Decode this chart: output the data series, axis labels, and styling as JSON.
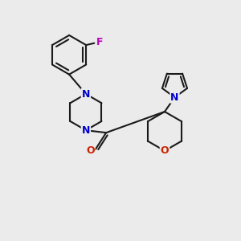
{
  "bg_color": "#ebebeb",
  "bond_color": "#1a1a1a",
  "bond_width": 1.5,
  "atom_N_color": "#0000cc",
  "atom_O_color": "#cc2200",
  "atom_F_color": "#bb00bb",
  "figsize": [
    3.0,
    3.0
  ],
  "dpi": 100,
  "xlim": [
    0,
    10
  ],
  "ylim": [
    0,
    10
  ]
}
